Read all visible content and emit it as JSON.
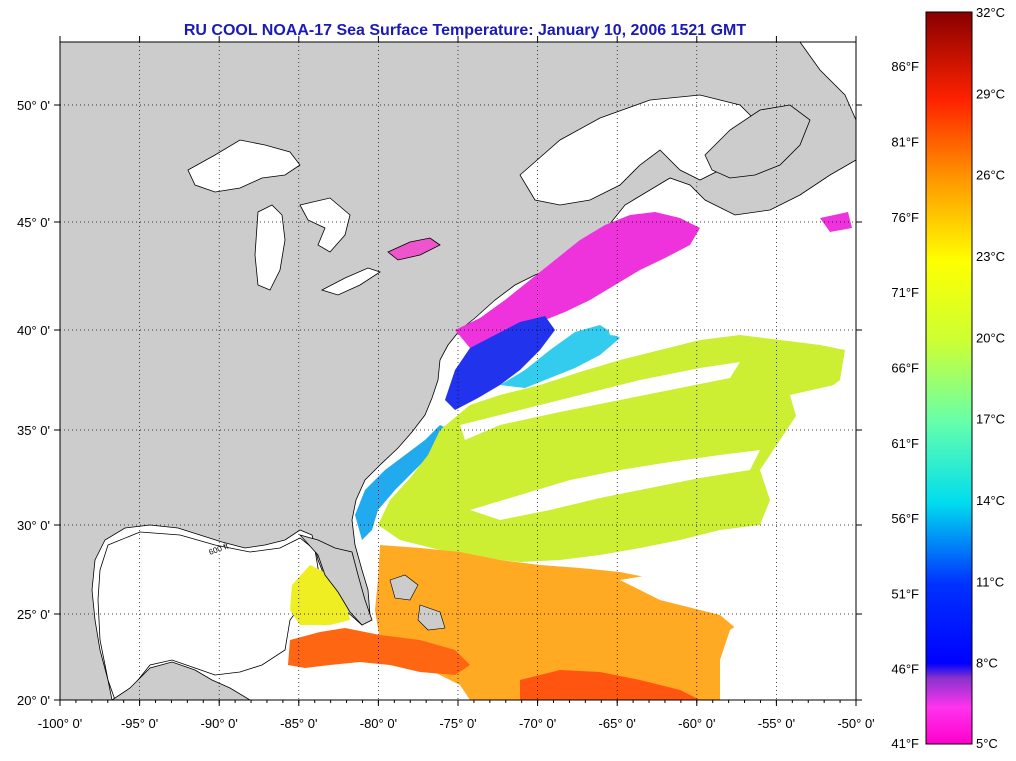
{
  "title": "RU COOL  NOAA-17  Sea Surface Temperature:  January 10, 2006 1521 GMT",
  "lon_labels": [
    "-100° 0'",
    "-95° 0'",
    "-90° 0'",
    "-85° 0'",
    "-80° 0'",
    "-75° 0'",
    "-70° 0'",
    "-65° 0'",
    "-60° 0'",
    "-55° 0'",
    "-50° 0'"
  ],
  "lon_values": [
    -100,
    -95,
    -90,
    -85,
    -80,
    -75,
    -70,
    -65,
    -60,
    -55,
    -50
  ],
  "lat_labels": [
    "50° 0'",
    "45° 0'",
    "40° 0'",
    "35° 0'",
    "30° 0'",
    "25° 0'",
    "20° 0'"
  ],
  "lat_values": [
    50,
    45,
    40,
    35,
    30,
    25,
    20
  ],
  "colorbar": {
    "celsius_labels": [
      "32°C",
      "29°C",
      "26°C",
      "23°C",
      "20°C",
      "17°C",
      "14°C",
      "11°C",
      "8°C",
      "5°C"
    ],
    "celsius_values": [
      32,
      29,
      26,
      23,
      20,
      17,
      14,
      11,
      8,
      5
    ],
    "fahrenheit_labels": [
      "86°F",
      "81°F",
      "76°F",
      "71°F",
      "66°F",
      "61°F",
      "56°F",
      "51°F",
      "46°F",
      "41°F"
    ],
    "fahrenheit_values": [
      86,
      81,
      76,
      71,
      66,
      61,
      56,
      51,
      46,
      41
    ],
    "min_c": 5,
    "max_c": 32
  },
  "contour_label": "600 ft",
  "colors": {
    "land": "#cccccc",
    "ocean_nodata": "#ffffff",
    "title": "#1a1ab8",
    "grid": "#000000"
  }
}
